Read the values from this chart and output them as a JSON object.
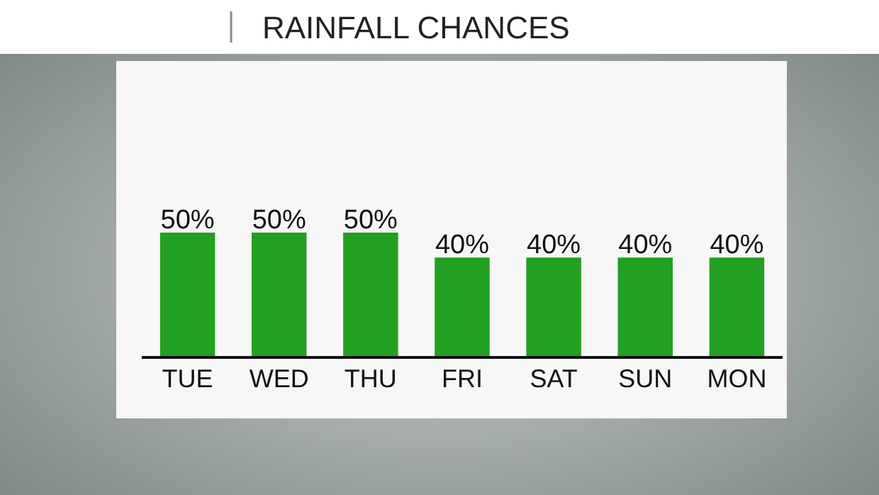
{
  "chart_data": {
    "type": "bar",
    "title": "RAINFALL CHANCES",
    "categories": [
      "TUE",
      "WED",
      "THU",
      "FRI",
      "SAT",
      "SUN",
      "MON"
    ],
    "values": [
      50,
      50,
      50,
      40,
      40,
      40,
      40
    ],
    "value_labels": [
      "50%",
      "50%",
      "50%",
      "40%",
      "40%",
      "40%",
      "40%"
    ],
    "color": "#22a022"
  }
}
